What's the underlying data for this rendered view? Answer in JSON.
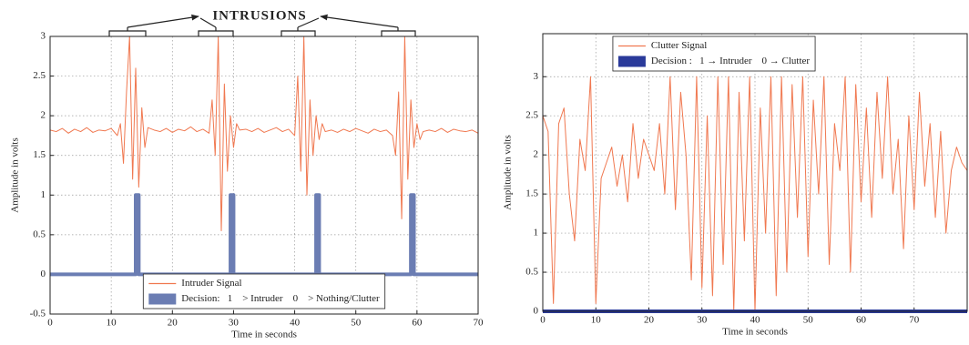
{
  "chart_data": [
    {
      "type": "line",
      "annotation": "INTRUSIONS",
      "xlabel": "Time in seconds",
      "ylabel": "Amplitude in volts",
      "xlim": [
        0,
        70
      ],
      "xticks": [
        0,
        10,
        20,
        30,
        40,
        50,
        60,
        70
      ],
      "ylim": [
        -0.5,
        3
      ],
      "yticks": [
        -0.5,
        0,
        0.5,
        1,
        1.5,
        2,
        2.5,
        3
      ],
      "grid": true,
      "legend": "lower center",
      "x": [
        0,
        1,
        2,
        3,
        4,
        5,
        6,
        7,
        8,
        9,
        10,
        11,
        11.5,
        12,
        12.5,
        13,
        13.5,
        14,
        14.5,
        15,
        15.5,
        16,
        17,
        18,
        19,
        20,
        21,
        22,
        23,
        24,
        25,
        26,
        26.5,
        27,
        27.5,
        28,
        28.5,
        29,
        29.5,
        30,
        30.5,
        31,
        32,
        33,
        34,
        35,
        36,
        37,
        38,
        39,
        40,
        40.5,
        41,
        41.5,
        42,
        42.5,
        43,
        43.5,
        44,
        44.5,
        45,
        46,
        47,
        48,
        49,
        50,
        51,
        52,
        53,
        54,
        55,
        56,
        56.5,
        57,
        57.5,
        58,
        58.5,
        59,
        59.5,
        60,
        60.5,
        61,
        62,
        63,
        64,
        65,
        66,
        67,
        68,
        69,
        70
      ],
      "series": [
        {
          "name": "Intruder Signal",
          "color": "#f07850",
          "values": [
            1.82,
            1.8,
            1.84,
            1.78,
            1.83,
            1.8,
            1.85,
            1.79,
            1.82,
            1.81,
            1.84,
            1.75,
            1.9,
            1.4,
            2.3,
            3.0,
            1.2,
            2.6,
            1.1,
            2.1,
            1.6,
            1.85,
            1.82,
            1.8,
            1.84,
            1.79,
            1.83,
            1.81,
            1.86,
            1.8,
            1.83,
            1.78,
            2.2,
            1.5,
            3.0,
            0.55,
            2.4,
            1.3,
            2.0,
            1.6,
            1.9,
            1.82,
            1.83,
            1.8,
            1.84,
            1.79,
            1.82,
            1.85,
            1.8,
            1.83,
            1.75,
            2.5,
            1.3,
            3.0,
            1.0,
            2.2,
            1.5,
            2.0,
            1.7,
            1.9,
            1.8,
            1.82,
            1.79,
            1.83,
            1.8,
            1.84,
            1.81,
            1.78,
            1.83,
            1.8,
            1.82,
            1.75,
            1.5,
            2.3,
            0.7,
            3.0,
            1.2,
            2.2,
            1.6,
            1.9,
            1.7,
            1.8,
            1.82,
            1.8,
            1.84,
            1.79,
            1.83,
            1.81,
            1.8,
            1.82,
            1.78
          ]
        },
        {
          "name": "Decision:   1    > Intruder    0    > Nothing/Clutter",
          "color": "#6b7db3",
          "drawstyle": "steps-post",
          "values": [
            0,
            0,
            0,
            0,
            0,
            0,
            0,
            0,
            0,
            0,
            0,
            0,
            0,
            0,
            0,
            0,
            0,
            1,
            0,
            0,
            0,
            0,
            0,
            0,
            0,
            0,
            0,
            0,
            0,
            0,
            0,
            0,
            0,
            0,
            0,
            0,
            0,
            0,
            1,
            0,
            0,
            0,
            0,
            0,
            0,
            0,
            0,
            0,
            0,
            0,
            0,
            0,
            0,
            0,
            0,
            0,
            0,
            1,
            0,
            0,
            0,
            0,
            0,
            0,
            0,
            0,
            0,
            0,
            0,
            0,
            0,
            0,
            0,
            0,
            0,
            0,
            0,
            1,
            0,
            0,
            0,
            0,
            0,
            0,
            0,
            0,
            0,
            0,
            0,
            0,
            0
          ]
        }
      ]
    },
    {
      "type": "line",
      "xlabel": "Time in seconds",
      "ylabel": "Amplitude in volts",
      "xlim": [
        0,
        80
      ],
      "xticks": [
        0,
        10,
        20,
        30,
        40,
        50,
        60,
        70
      ],
      "ylim": [
        0,
        3.55
      ],
      "yticks": [
        0,
        0.5,
        1,
        1.5,
        2,
        2.5,
        3
      ],
      "grid": true,
      "legend": "upper center",
      "x": [
        0,
        1,
        2,
        3,
        4,
        5,
        6,
        7,
        8,
        9,
        10,
        11,
        12,
        13,
        14,
        15,
        16,
        17,
        18,
        19,
        20,
        21,
        22,
        23,
        24,
        25,
        26,
        27,
        28,
        29,
        30,
        31,
        32,
        33,
        34,
        35,
        36,
        37,
        38,
        39,
        40,
        41,
        42,
        43,
        44,
        45,
        46,
        47,
        48,
        49,
        50,
        51,
        52,
        53,
        54,
        55,
        56,
        57,
        58,
        59,
        60,
        61,
        62,
        63,
        64,
        65,
        66,
        67,
        68,
        69,
        70,
        71,
        72,
        73,
        74,
        75,
        76,
        77,
        78,
        79,
        80
      ],
      "series": [
        {
          "name": "Clutter Signal",
          "color": "#f07850",
          "values": [
            2.5,
            2.3,
            0.1,
            2.4,
            2.6,
            1.5,
            0.9,
            2.2,
            1.8,
            3.0,
            0.1,
            1.7,
            1.9,
            2.1,
            1.6,
            2.0,
            1.4,
            2.4,
            1.7,
            2.2,
            2.0,
            1.8,
            2.4,
            1.5,
            3.0,
            1.3,
            2.8,
            2.0,
            0.4,
            3.0,
            0.3,
            2.5,
            0.2,
            3.0,
            0.6,
            3.0,
            0,
            2.8,
            0.9,
            3.0,
            0,
            2.6,
            1.0,
            3.0,
            0.2,
            3.0,
            0.5,
            2.9,
            1.2,
            3.0,
            0.7,
            2.7,
            1.5,
            3.0,
            0.6,
            2.4,
            1.8,
            3.0,
            0.5,
            2.9,
            1.4,
            2.6,
            1.2,
            2.8,
            1.7,
            3.0,
            1.5,
            2.2,
            0.8,
            2.5,
            1.3,
            2.8,
            1.6,
            2.4,
            1.2,
            2.3,
            1.0,
            1.8,
            2.1,
            1.9,
            1.8
          ]
        },
        {
          "name": "Decision :   1 → Intruder    0 → Clutter",
          "color": "#2a3a9a",
          "drawstyle": "steps-post",
          "values": [
            0,
            0,
            0,
            0,
            0,
            0,
            0,
            0,
            0,
            0,
            0,
            0,
            0,
            0,
            0,
            0,
            0,
            0,
            0,
            0,
            0,
            0,
            0,
            0,
            0,
            0,
            0,
            0,
            0,
            0,
            0,
            0,
            0,
            0,
            0,
            0,
            0,
            0,
            0,
            0,
            0,
            0,
            0,
            0,
            0,
            0,
            0,
            0,
            0,
            0,
            0,
            0,
            0,
            0,
            0,
            0,
            0,
            0,
            0,
            0,
            0,
            0,
            0,
            0,
            0,
            0,
            0,
            0,
            0,
            0,
            0,
            0,
            0,
            0,
            0,
            0,
            0,
            0,
            0,
            0,
            0
          ]
        }
      ]
    }
  ]
}
